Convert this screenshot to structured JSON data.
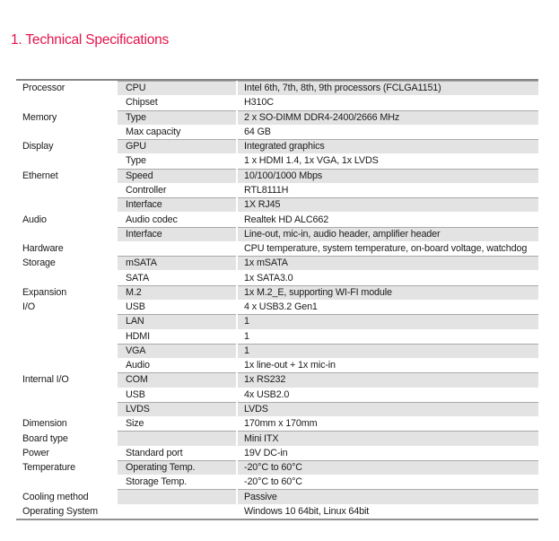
{
  "page": {
    "title": "1. Technical Specifications",
    "accent_color": "#e4134a",
    "row_shade_color": "#e3e3e3",
    "border_color": "#8a8a8a"
  },
  "table": {
    "columns": [
      "category",
      "item",
      "value"
    ],
    "rows": [
      {
        "category": "Processor",
        "item": "CPU",
        "value": "Intel 6th, 7th, 8th, 9th processors (FCLGA1151)"
      },
      {
        "category": "",
        "item": "Chipset",
        "value": "H310C"
      },
      {
        "category": "Memory",
        "item": "Type",
        "value": "2 x SO-DIMM DDR4-2400/2666 MHz"
      },
      {
        "category": "",
        "item": "Max capacity",
        "value": "64 GB"
      },
      {
        "category": "Display",
        "item": "GPU",
        "value": "Integrated graphics"
      },
      {
        "category": "",
        "item": "Type",
        "value": "1 x HDMI 1.4, 1x VGA, 1x LVDS"
      },
      {
        "category": "Ethernet",
        "item": "Speed",
        "value": "10/100/1000 Mbps"
      },
      {
        "category": "",
        "item": "Controller",
        "value": "RTL8111H"
      },
      {
        "category": "",
        "item": "Interface",
        "value": "1X RJ45"
      },
      {
        "category": "Audio",
        "item": "Audio codec",
        "value": "Realtek HD ALC662"
      },
      {
        "category": "",
        "item": "Interface",
        "value": "Line-out, mic-in, audio header, amplifier header"
      },
      {
        "category": "Hardware",
        "item": "",
        "value": "CPU temperature, system temperature, on-board voltage, watchdog"
      },
      {
        "category": "Storage",
        "item": "mSATA",
        "value": "1x mSATA"
      },
      {
        "category": "",
        "item": "SATA",
        "value": "1x SATA3.0"
      },
      {
        "category": "Expansion",
        "item": "M.2",
        "value": "1x M.2_E, supporting WI-FI module"
      },
      {
        "category": "I/O",
        "item": "USB",
        "value": "4 x USB3.2 Gen1"
      },
      {
        "category": "",
        "item": "LAN",
        "value": "1"
      },
      {
        "category": "",
        "item": "HDMI",
        "value": "1"
      },
      {
        "category": "",
        "item": "VGA",
        "value": "1"
      },
      {
        "category": "",
        "item": "Audio",
        "value": "1x line-out + 1x mic-in"
      },
      {
        "category": "Internal I/O",
        "item": "COM",
        "value": "1x RS232"
      },
      {
        "category": "",
        "item": "USB",
        "value": "4x USB2.0"
      },
      {
        "category": "",
        "item": "LVDS",
        "value": "LVDS"
      },
      {
        "category": "Dimension",
        "item": "Size",
        "value": "170mm x 170mm"
      },
      {
        "category": "Board type",
        "item": "",
        "value": "Mini ITX"
      },
      {
        "category": "Power",
        "item": "Standard port",
        "value": "19V DC-in"
      },
      {
        "category": "Temperature",
        "item": "Operating Temp.",
        "value": "-20°C to 60°C"
      },
      {
        "category": "",
        "item": "Storage Temp.",
        "value": "-20°C to 60°C"
      },
      {
        "category": "Cooling method",
        "item": "",
        "value": "Passive"
      },
      {
        "category": "Operating System",
        "item": "",
        "value": "Windows 10 64bit, Linux 64bit"
      }
    ]
  }
}
